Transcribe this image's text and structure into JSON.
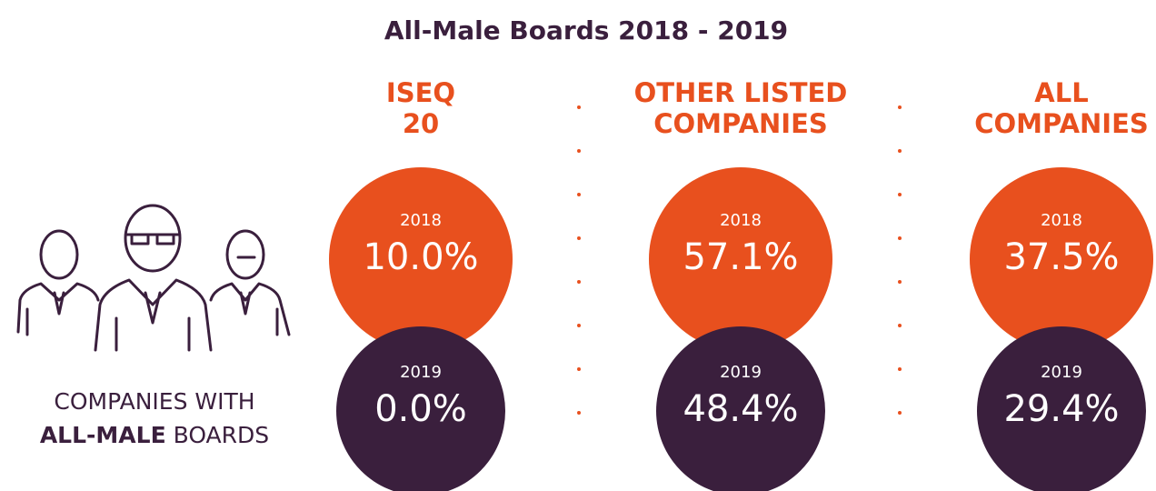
{
  "title": "All-Male Boards 2018 - 2019",
  "label": {
    "line1": "COMPANIES WITH",
    "bold": "ALL-MALE",
    "rest": "BOARDS"
  },
  "panels": [
    {
      "heading": [
        "ISEQ",
        "20"
      ],
      "rows": [
        {
          "year": "2018",
          "value": "10.0%"
        },
        {
          "year": "2019",
          "value": "0.0%"
        }
      ]
    },
    {
      "heading": [
        "OTHER LISTED",
        "COMPANIES"
      ],
      "rows": [
        {
          "year": "2018",
          "value": "57.1%"
        },
        {
          "year": "2019",
          "value": "48.4%"
        }
      ]
    },
    {
      "heading": [
        "ALL",
        "COMPANIES"
      ],
      "rows": [
        {
          "year": "2018",
          "value": "37.5%"
        },
        {
          "year": "2019",
          "value": "29.4%"
        }
      ]
    }
  ]
}
